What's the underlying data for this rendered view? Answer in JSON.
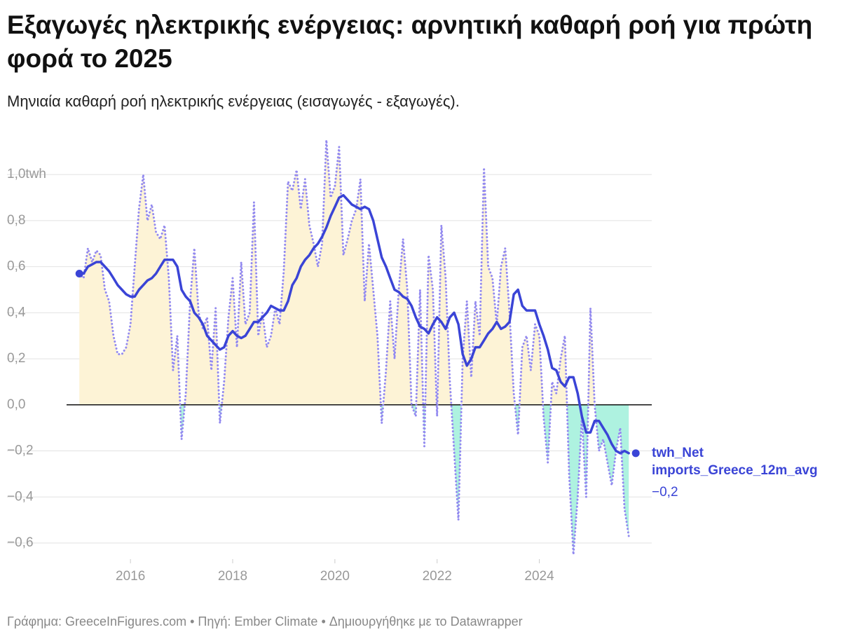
{
  "chart_data": {
    "type": "line",
    "title": "Εξαγωγές ηλεκτρικής ενέργειας: αρνητική καθαρή ροή για πρώτη φορά το 2025",
    "subtitle": "Μηνιαία καθαρή ροή ηλεκτρικής ενέργειας (εισαγωγές - εξαγωγές).",
    "footer": "Γράφημα: GreeceInFigures.com • Πηγή: Ember Climate • Δημιουργήθηκε με το Datawrapper",
    "x": [
      2015,
      2015.083,
      2015.167,
      2015.25,
      2015.333,
      2015.417,
      2015.5,
      2015.583,
      2015.667,
      2015.75,
      2015.833,
      2015.917,
      2016,
      2016.083,
      2016.167,
      2016.25,
      2016.333,
      2016.417,
      2016.5,
      2016.583,
      2016.667,
      2016.75,
      2016.833,
      2016.917,
      2017,
      2017.083,
      2017.167,
      2017.25,
      2017.333,
      2017.417,
      2017.5,
      2017.583,
      2017.667,
      2017.75,
      2017.833,
      2017.917,
      2018,
      2018.083,
      2018.167,
      2018.25,
      2018.333,
      2018.417,
      2018.5,
      2018.583,
      2018.667,
      2018.75,
      2018.833,
      2018.917,
      2019,
      2019.083,
      2019.167,
      2019.25,
      2019.333,
      2019.417,
      2019.5,
      2019.583,
      2019.667,
      2019.75,
      2019.833,
      2019.917,
      2020,
      2020.083,
      2020.167,
      2020.25,
      2020.333,
      2020.417,
      2020.5,
      2020.583,
      2020.667,
      2020.75,
      2020.833,
      2020.917,
      2021,
      2021.083,
      2021.167,
      2021.25,
      2021.333,
      2021.417,
      2021.5,
      2021.583,
      2021.667,
      2021.75,
      2021.833,
      2021.917,
      2022,
      2022.083,
      2022.167,
      2022.25,
      2022.333,
      2022.417,
      2022.5,
      2022.583,
      2022.667,
      2022.75,
      2022.833,
      2022.917,
      2023,
      2023.083,
      2023.167,
      2023.25,
      2023.333,
      2023.417,
      2023.5,
      2023.583,
      2023.667,
      2023.75,
      2023.833,
      2023.917,
      2024,
      2024.083,
      2024.167,
      2024.25,
      2024.333,
      2024.417,
      2024.5,
      2024.583,
      2024.667,
      2024.75,
      2024.833,
      2024.917,
      2025,
      2025.083,
      2025.167,
      2025.25,
      2025.333,
      2025.417,
      2025.5,
      2025.583,
      2025.667,
      2025.75
    ],
    "series": [
      {
        "color": "#938af0",
        "style": "dotted",
        "fill_positive": "#fdf3d6",
        "fill_negative": "#aef2e0",
        "values": [
          0.57,
          0.55,
          0.68,
          0.62,
          0.67,
          0.65,
          0.5,
          0.45,
          0.3,
          0.22,
          0.22,
          0.25,
          0.35,
          0.6,
          0.85,
          1.0,
          0.8,
          0.87,
          0.75,
          0.72,
          0.78,
          0.55,
          0.15,
          0.3,
          -0.15,
          0.05,
          0.45,
          0.68,
          0.4,
          0.33,
          0.38,
          0.15,
          0.42,
          -0.08,
          0.1,
          0.38,
          0.55,
          0.25,
          0.62,
          0.35,
          0.4,
          0.88,
          0.3,
          0.4,
          0.25,
          0.3,
          0.42,
          0.35,
          0.58,
          0.97,
          0.93,
          1.02,
          0.85,
          0.98,
          0.78,
          0.7,
          0.6,
          0.7,
          1.15,
          0.9,
          0.95,
          1.12,
          0.65,
          0.72,
          0.8,
          0.85,
          0.98,
          0.45,
          0.7,
          0.5,
          0.3,
          -0.08,
          0.15,
          0.45,
          0.2,
          0.5,
          0.72,
          0.5,
          0.0,
          -0.05,
          0.5,
          -0.18,
          0.65,
          0.5,
          -0.05,
          0.78,
          0.55,
          0.1,
          -0.2,
          -0.5,
          0.2,
          0.45,
          0.12,
          0.45,
          0.3,
          1.03,
          0.6,
          0.55,
          0.35,
          0.6,
          0.68,
          0.4,
          0.05,
          -0.13,
          0.25,
          0.3,
          0.15,
          0.35,
          0.3,
          -0.05,
          -0.25,
          0.1,
          0.05,
          0.2,
          0.3,
          -0.3,
          -0.65,
          -0.4,
          -0.05,
          -0.4,
          0.42,
          0.0,
          -0.2,
          -0.15,
          -0.25,
          -0.35,
          -0.2,
          -0.1,
          -0.45,
          -0.57
        ]
      },
      {
        "name": "twh_Net imports_Greece_12m_avg",
        "color": "#3a44d6",
        "style": "solid",
        "end_label": "−0,2",
        "values": [
          0.57,
          0.57,
          0.6,
          0.61,
          0.62,
          0.62,
          0.6,
          0.58,
          0.55,
          0.52,
          0.5,
          0.48,
          0.47,
          0.47,
          0.5,
          0.52,
          0.54,
          0.55,
          0.57,
          0.6,
          0.63,
          0.63,
          0.63,
          0.6,
          0.5,
          0.47,
          0.45,
          0.4,
          0.38,
          0.35,
          0.3,
          0.28,
          0.26,
          0.24,
          0.25,
          0.3,
          0.32,
          0.3,
          0.29,
          0.3,
          0.33,
          0.36,
          0.36,
          0.38,
          0.4,
          0.43,
          0.42,
          0.41,
          0.41,
          0.45,
          0.52,
          0.55,
          0.6,
          0.63,
          0.65,
          0.68,
          0.7,
          0.73,
          0.77,
          0.82,
          0.86,
          0.9,
          0.91,
          0.89,
          0.87,
          0.86,
          0.85,
          0.86,
          0.85,
          0.8,
          0.72,
          0.64,
          0.6,
          0.55,
          0.5,
          0.49,
          0.47,
          0.46,
          0.43,
          0.38,
          0.34,
          0.33,
          0.31,
          0.35,
          0.38,
          0.36,
          0.33,
          0.38,
          0.4,
          0.35,
          0.22,
          0.17,
          0.2,
          0.25,
          0.25,
          0.28,
          0.31,
          0.33,
          0.36,
          0.33,
          0.34,
          0.36,
          0.48,
          0.5,
          0.43,
          0.41,
          0.41,
          0.41,
          0.35,
          0.3,
          0.24,
          0.16,
          0.15,
          0.1,
          0.08,
          0.12,
          0.12,
          0.05,
          -0.05,
          -0.12,
          -0.12,
          -0.07,
          -0.07,
          -0.1,
          -0.13,
          -0.17,
          -0.2,
          -0.21,
          -0.2,
          -0.21
        ]
      }
    ],
    "xlim": [
      2014.75,
      2026.2
    ],
    "xticks": [
      2016,
      2018,
      2020,
      2022,
      2024
    ],
    "ylim": [
      -0.67,
      1.18
    ],
    "yticks": [
      {
        "value": 1.0,
        "label": "1,0twh"
      },
      {
        "value": 0.8,
        "label": "0,8"
      },
      {
        "value": 0.6,
        "label": "0,6"
      },
      {
        "value": 0.4,
        "label": "0,4"
      },
      {
        "value": 0.2,
        "label": "0,2"
      },
      {
        "value": 0,
        "label": "0,0"
      },
      {
        "value": -0.2,
        "label": "−0,2"
      },
      {
        "value": -0.4,
        "label": "−0,4"
      },
      {
        "value": -0.6,
        "label": "−0,6"
      }
    ],
    "grid": true
  }
}
